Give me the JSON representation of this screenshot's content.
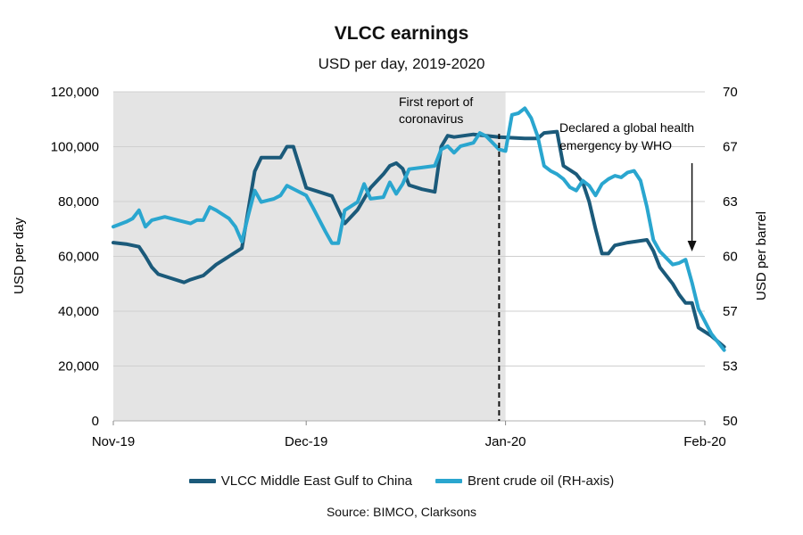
{
  "chart_data": {
    "type": "line",
    "title": "VLCC earnings",
    "subtitle": "USD per day, 2019-2020",
    "ylabel": "USD per day",
    "y2label": "USD per barrel",
    "x_ticks": [
      "Nov-19",
      "Dec-19",
      "Jan-20",
      "Feb-20"
    ],
    "x_range": [
      "2019-11-01",
      "2020-02-01"
    ],
    "y_ticks": [
      "0",
      "20,000",
      "40,000",
      "60,000",
      "80,000",
      "100,000",
      "120,000"
    ],
    "ylim": [
      0,
      120000
    ],
    "y2_ticks": [
      "50",
      "53",
      "57",
      "60",
      "63",
      "67",
      "70"
    ],
    "y2lim": [
      50,
      70
    ],
    "shaded_region": [
      "2019-11-01",
      "2020-01-01"
    ],
    "grid": "horizontal",
    "legend_position": "bottom",
    "annotations": [
      {
        "text_lines": [
          "First report of",
          "coronavirus"
        ],
        "date": "2019-12-31",
        "style": "dashed-vertical-line"
      },
      {
        "text_lines": [
          "Declared a global health",
          "emergency by WHO"
        ],
        "date": "2020-01-30",
        "style": "arrow-down"
      }
    ],
    "series": [
      {
        "name": "VLCC Middle East Gulf to China",
        "axis": "left",
        "color": "#1b5a7a",
        "points": [
          [
            "2019-11-01",
            65000
          ],
          [
            "2019-11-03",
            64500
          ],
          [
            "2019-11-05",
            63500
          ],
          [
            "2019-11-06",
            60000
          ],
          [
            "2019-11-07",
            56000
          ],
          [
            "2019-11-08",
            53500
          ],
          [
            "2019-11-10",
            52000
          ],
          [
            "2019-11-12",
            50500
          ],
          [
            "2019-11-13",
            51500
          ],
          [
            "2019-11-15",
            53000
          ],
          [
            "2019-11-17",
            57000
          ],
          [
            "2019-11-19",
            60000
          ],
          [
            "2019-11-21",
            63000
          ],
          [
            "2019-11-23",
            91000
          ],
          [
            "2019-11-24",
            96000
          ],
          [
            "2019-11-27",
            96000
          ],
          [
            "2019-11-28",
            100000
          ],
          [
            "2019-11-29",
            100000
          ],
          [
            "2019-12-01",
            85000
          ],
          [
            "2019-12-03",
            83500
          ],
          [
            "2019-12-05",
            82000
          ],
          [
            "2019-12-07",
            72000
          ],
          [
            "2019-12-09",
            77000
          ],
          [
            "2019-12-11",
            85000
          ],
          [
            "2019-12-13",
            90000
          ],
          [
            "2019-12-14",
            93000
          ],
          [
            "2019-12-15",
            94000
          ],
          [
            "2019-12-16",
            92000
          ],
          [
            "2019-12-17",
            86000
          ],
          [
            "2019-12-19",
            84500
          ],
          [
            "2019-12-21",
            83500
          ],
          [
            "2019-12-22",
            100000
          ],
          [
            "2019-12-23",
            104000
          ],
          [
            "2019-12-24",
            103500
          ],
          [
            "2019-12-27",
            104500
          ],
          [
            "2019-12-31",
            103500
          ],
          [
            "2020-01-04",
            103000
          ],
          [
            "2020-01-06",
            103000
          ],
          [
            "2020-01-07",
            105000
          ],
          [
            "2020-01-09",
            105500
          ],
          [
            "2020-01-10",
            93000
          ],
          [
            "2020-01-12",
            90000
          ],
          [
            "2020-01-13",
            87000
          ],
          [
            "2020-01-14",
            80000
          ],
          [
            "2020-01-15",
            70000
          ],
          [
            "2020-01-16",
            61000
          ],
          [
            "2020-01-17",
            61000
          ],
          [
            "2020-01-18",
            64000
          ],
          [
            "2020-01-20",
            65000
          ],
          [
            "2020-01-23",
            66000
          ],
          [
            "2020-01-24",
            62000
          ],
          [
            "2020-01-25",
            56000
          ],
          [
            "2020-01-27",
            50000
          ],
          [
            "2020-01-28",
            46000
          ],
          [
            "2020-01-29",
            43000
          ],
          [
            "2020-01-30",
            43000
          ],
          [
            "2020-01-31",
            34000
          ],
          [
            "2020-02-02",
            31000
          ],
          [
            "2020-02-04",
            27000
          ]
        ]
      },
      {
        "name": "Brent crude oil (RH-axis)",
        "axis": "right",
        "color": "#2aa6cf",
        "points": [
          [
            "2019-11-01",
            61.8
          ],
          [
            "2019-11-03",
            62.1
          ],
          [
            "2019-11-04",
            62.3
          ],
          [
            "2019-11-05",
            62.8
          ],
          [
            "2019-11-06",
            61.8
          ],
          [
            "2019-11-07",
            62.2
          ],
          [
            "2019-11-09",
            62.4
          ],
          [
            "2019-11-11",
            62.2
          ],
          [
            "2019-11-13",
            62.0
          ],
          [
            "2019-11-14",
            62.2
          ],
          [
            "2019-11-15",
            62.2
          ],
          [
            "2019-11-16",
            63.0
          ],
          [
            "2019-11-17",
            62.8
          ],
          [
            "2019-11-19",
            62.3
          ],
          [
            "2019-11-20",
            61.8
          ],
          [
            "2019-11-21",
            60.9
          ],
          [
            "2019-11-22",
            62.5
          ],
          [
            "2019-11-23",
            64.0
          ],
          [
            "2019-11-24",
            63.3
          ],
          [
            "2019-11-26",
            63.5
          ],
          [
            "2019-11-27",
            63.7
          ],
          [
            "2019-11-28",
            64.3
          ],
          [
            "2019-11-29",
            64.1
          ],
          [
            "2019-12-01",
            63.7
          ],
          [
            "2019-12-02",
            63.0
          ],
          [
            "2019-12-04",
            61.5
          ],
          [
            "2019-12-05",
            60.8
          ],
          [
            "2019-12-06",
            60.8
          ],
          [
            "2019-12-07",
            62.8
          ],
          [
            "2019-12-09",
            63.3
          ],
          [
            "2019-12-10",
            64.4
          ],
          [
            "2019-12-11",
            63.5
          ],
          [
            "2019-12-13",
            63.6
          ],
          [
            "2019-12-14",
            64.5
          ],
          [
            "2019-12-15",
            63.8
          ],
          [
            "2019-12-16",
            64.4
          ],
          [
            "2019-12-17",
            65.3
          ],
          [
            "2019-12-19",
            65.4
          ],
          [
            "2019-12-21",
            65.5
          ],
          [
            "2019-12-22",
            66.5
          ],
          [
            "2019-12-23",
            66.7
          ],
          [
            "2019-12-24",
            66.3
          ],
          [
            "2019-12-25",
            66.7
          ],
          [
            "2019-12-27",
            66.9
          ],
          [
            "2019-12-28",
            67.5
          ],
          [
            "2019-12-29",
            67.3
          ],
          [
            "2019-12-30",
            66.9
          ],
          [
            "2019-12-31",
            66.5
          ],
          [
            "2020-01-01",
            66.4
          ],
          [
            "2020-01-02",
            68.6
          ],
          [
            "2020-01-03",
            68.7
          ],
          [
            "2020-01-04",
            69.0
          ],
          [
            "2020-01-05",
            68.4
          ],
          [
            "2020-01-06",
            67.3
          ],
          [
            "2020-01-07",
            65.5
          ],
          [
            "2020-01-08",
            65.2
          ],
          [
            "2020-01-09",
            65.0
          ],
          [
            "2020-01-10",
            64.7
          ],
          [
            "2020-01-11",
            64.2
          ],
          [
            "2020-01-12",
            64.0
          ],
          [
            "2020-01-13",
            64.6
          ],
          [
            "2020-01-14",
            64.3
          ],
          [
            "2020-01-15",
            63.7
          ],
          [
            "2020-01-16",
            64.4
          ],
          [
            "2020-01-17",
            64.7
          ],
          [
            "2020-01-18",
            64.9
          ],
          [
            "2020-01-19",
            64.8
          ],
          [
            "2020-01-20",
            65.1
          ],
          [
            "2020-01-21",
            65.2
          ],
          [
            "2020-01-22",
            64.6
          ],
          [
            "2020-01-23",
            63.0
          ],
          [
            "2020-01-24",
            61.0
          ],
          [
            "2020-01-25",
            60.3
          ],
          [
            "2020-01-26",
            59.9
          ],
          [
            "2020-01-27",
            59.5
          ],
          [
            "2020-01-28",
            59.6
          ],
          [
            "2020-01-29",
            59.8
          ],
          [
            "2020-01-30",
            58.4
          ],
          [
            "2020-01-31",
            56.8
          ],
          [
            "2020-02-02",
            55.3
          ],
          [
            "2020-02-04",
            54.3
          ]
        ]
      }
    ]
  },
  "source": "Source: BIMCO, Clarksons"
}
